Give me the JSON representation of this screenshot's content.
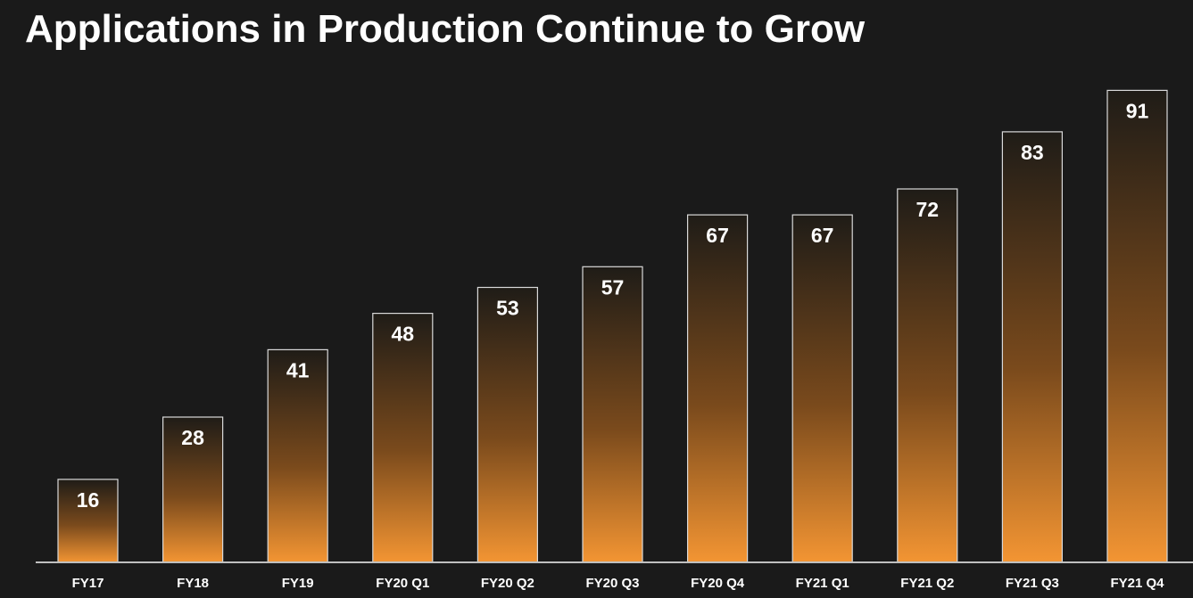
{
  "title": "Applications in Production Continue to Grow",
  "colors": {
    "background": "#1a1a1a",
    "bar_top": "#1f1c17",
    "bar_bottom": "#f39533",
    "bar_border": "#d9d9d9",
    "text": "#ffffff",
    "axis": "#bfbfbf"
  },
  "chart_data": {
    "type": "bar",
    "title": "Applications in Production Continue to Grow",
    "xlabel": "",
    "ylabel": "",
    "ylim": [
      0,
      100
    ],
    "grid": false,
    "legend": "none",
    "categories": [
      "FY17",
      "FY18",
      "FY19",
      "FY20 Q1",
      "FY20 Q2",
      "FY20 Q3",
      "FY20 Q4",
      "FY21 Q1",
      "FY21 Q2",
      "FY21 Q3",
      "FY21 Q4"
    ],
    "values": [
      16,
      28,
      41,
      48,
      53,
      57,
      67,
      67,
      72,
      83,
      91
    ],
    "data_labels": [
      "16",
      "28",
      "41",
      "48",
      "53",
      "57",
      "67",
      "67",
      "72",
      "83",
      "91"
    ]
  }
}
